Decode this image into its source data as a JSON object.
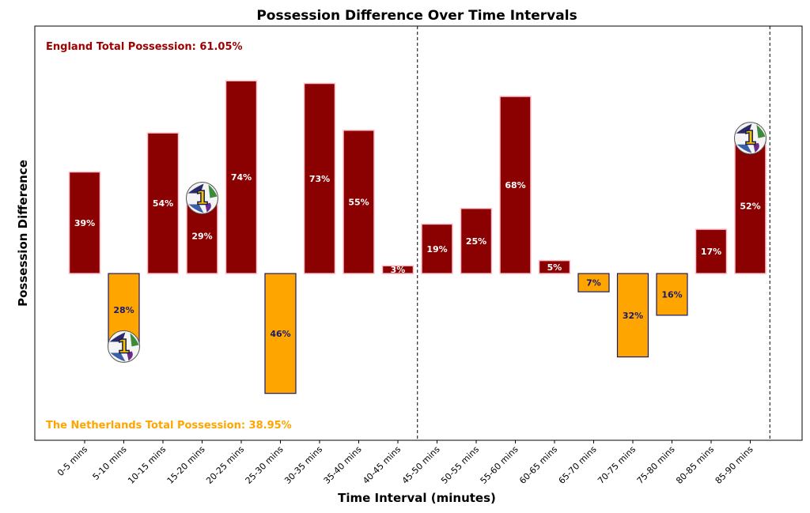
{
  "chart_data": {
    "type": "bar",
    "title": "Possession Difference Over Time Intervals",
    "xlabel": "Time Interval (minutes)",
    "ylabel": "Possession Difference",
    "categories": [
      "0-5 mins",
      "5-10 mins",
      "10-15 mins",
      "15-20 mins",
      "20-25 mins",
      "25-30 mins",
      "30-35 mins",
      "35-40 mins",
      "40-45 mins",
      "45-50 mins",
      "50-55 mins",
      "55-60 mins",
      "60-65 mins",
      "65-70 mins",
      "70-75 mins",
      "75-80 mins",
      "80-85 mins",
      "85-90 mins"
    ],
    "values": [
      39,
      -28,
      54,
      29,
      74,
      -46,
      73,
      55,
      3,
      19,
      25,
      68,
      5,
      -7,
      -32,
      -16,
      17,
      52
    ],
    "labels": [
      "39%",
      "28%",
      "54%",
      "29%",
      "74%",
      "46%",
      "73%",
      "55%",
      "3%",
      "19%",
      "25%",
      "68%",
      "5%",
      "7%",
      "32%",
      "16%",
      "17%",
      "52%"
    ],
    "ylim": [
      -64,
      95
    ],
    "grid": false,
    "half_time_line_after": "40-45 mins",
    "end_line_after": "85-90 mins",
    "goal_markers": [
      {
        "interval": "5-10 mins",
        "team": "The Netherlands",
        "icon": "football-icon",
        "number": "1"
      },
      {
        "interval": "15-20 mins",
        "team": "England",
        "icon": "football-icon",
        "number": "1"
      },
      {
        "interval": "85-90 mins",
        "team": "England",
        "icon": "football-icon",
        "number": "1"
      }
    ],
    "annotations": {
      "england_total": "England Total Possession: 61.05%",
      "netherlands_total": "The Netherlands Total Possession: 38.95%"
    },
    "colors": {
      "england": "#8b0000",
      "england_edge": "#ffc0cb",
      "netherlands": "#ffa500",
      "netherlands_edge": "#191970",
      "england_text": "#ffffff",
      "netherlands_text": "#191970",
      "england_annotation": "#a00000",
      "netherlands_annotation": "#ffa500"
    }
  }
}
